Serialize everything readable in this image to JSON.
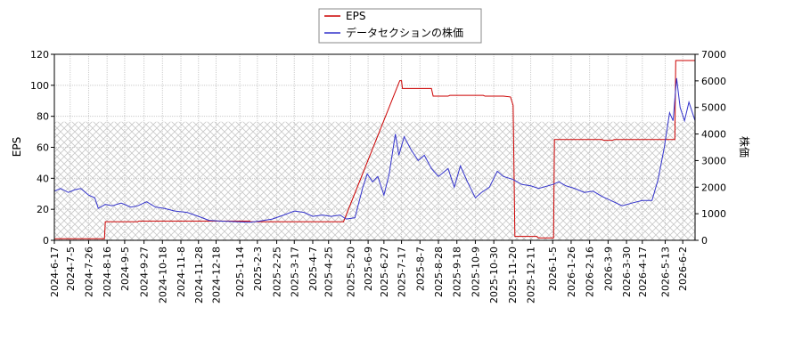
{
  "chart_data": {
    "type": "line",
    "legend": {
      "placement": "top-center",
      "entries": [
        {
          "name": "EPS",
          "color": "#cc0000"
        },
        {
          "name": "データセクションの株価",
          "color": "#3333cc"
        }
      ]
    },
    "ylabel_left": "EPS",
    "ylabel_right": "株価",
    "ylim_left": [
      0,
      120
    ],
    "ylim_right": [
      0,
      7000
    ],
    "yticks_left": [
      0,
      20,
      40,
      60,
      80,
      100,
      120
    ],
    "yticks_right": [
      0,
      1000,
      2000,
      3000,
      4000,
      5000,
      6000,
      7000
    ],
    "xlim": [
      "2024-06-17",
      "2026-06-16"
    ],
    "xticks": [
      "2024-6-17",
      "2024-7-5",
      "2024-7-26",
      "2024-8-16",
      "2024-9-5",
      "2024-9-27",
      "2024-10-18",
      "2024-11-8",
      "2024-11-28",
      "2024-12-18",
      "2025-1-14",
      "2025-2-3",
      "2025-2-25",
      "2025-3-17",
      "2025-4-7",
      "2025-4-25",
      "2025-5-20",
      "2025-6-9",
      "2025-6-27",
      "2025-7-17",
      "2025-8-7",
      "2025-8-28",
      "2025-9-18",
      "2025-10-9",
      "2025-10-30",
      "2025-11-20",
      "2025-12-11",
      "2026-1-5",
      "2026-1-26",
      "2026-2-16",
      "2026-3-9",
      "2026-3-30",
      "2026-4-17",
      "2026-5-13",
      "2026-6-2"
    ],
    "grid": true,
    "hatched_band_left": [
      0,
      76.5
    ],
    "series": [
      {
        "name": "EPS",
        "axis": "left",
        "color": "#cc0000",
        "points": [
          [
            "2024-06-17",
            1.0
          ],
          [
            "2024-08-13",
            1.0
          ],
          [
            "2024-08-14",
            12.0
          ],
          [
            "2024-09-20",
            12.0
          ],
          [
            "2024-09-21",
            12.4
          ],
          [
            "2025-01-25",
            12.4
          ],
          [
            "2025-01-26",
            12.0
          ],
          [
            "2025-05-12",
            12.0
          ],
          [
            "2025-07-15",
            103
          ],
          [
            "2025-07-17",
            103
          ],
          [
            "2025-07-18",
            98
          ],
          [
            "2025-08-20",
            98
          ],
          [
            "2025-08-22",
            93
          ],
          [
            "2025-09-08",
            93
          ],
          [
            "2025-09-10",
            93.5
          ],
          [
            "2025-10-18",
            93.5
          ],
          [
            "2025-10-20",
            93
          ],
          [
            "2025-11-10",
            93
          ],
          [
            "2025-11-18",
            92.5
          ],
          [
            "2025-11-21",
            87
          ],
          [
            "2025-11-23",
            2.5
          ],
          [
            "2025-12-18",
            2.5
          ],
          [
            "2025-12-20",
            1.5
          ],
          [
            "2026-01-06",
            1.5
          ],
          [
            "2026-01-07",
            65
          ],
          [
            "2026-03-02",
            65
          ],
          [
            "2026-03-04",
            64.5
          ],
          [
            "2026-03-14",
            64.5
          ],
          [
            "2026-03-16",
            65
          ],
          [
            "2026-05-24",
            65
          ],
          [
            "2026-05-25",
            116
          ],
          [
            "2026-06-16",
            116
          ]
        ]
      },
      {
        "name": "データセクションの株価",
        "axis": "right",
        "color": "#3333cc",
        "points": [
          [
            "2024-06-17",
            1850
          ],
          [
            "2024-06-24",
            1950
          ],
          [
            "2024-07-03",
            1800
          ],
          [
            "2024-07-10",
            1900
          ],
          [
            "2024-07-17",
            1950
          ],
          [
            "2024-07-26",
            1700
          ],
          [
            "2024-08-02",
            1600
          ],
          [
            "2024-08-06",
            1200
          ],
          [
            "2024-08-14",
            1350
          ],
          [
            "2024-08-22",
            1300
          ],
          [
            "2024-09-01",
            1400
          ],
          [
            "2024-09-12",
            1250
          ],
          [
            "2024-09-20",
            1300
          ],
          [
            "2024-09-30",
            1450
          ],
          [
            "2024-10-10",
            1250
          ],
          [
            "2024-10-20",
            1200
          ],
          [
            "2024-11-01",
            1100
          ],
          [
            "2024-11-15",
            1050
          ],
          [
            "2024-11-28",
            900
          ],
          [
            "2024-12-10",
            750
          ],
          [
            "2024-12-25",
            720
          ],
          [
            "2025-01-10",
            700
          ],
          [
            "2025-01-25",
            680
          ],
          [
            "2025-02-05",
            720
          ],
          [
            "2025-02-20",
            800
          ],
          [
            "2025-03-05",
            950
          ],
          [
            "2025-03-17",
            1100
          ],
          [
            "2025-03-28",
            1050
          ],
          [
            "2025-04-07",
            900
          ],
          [
            "2025-04-18",
            950
          ],
          [
            "2025-04-28",
            900
          ],
          [
            "2025-05-08",
            950
          ],
          [
            "2025-05-15",
            800
          ],
          [
            "2025-05-25",
            850
          ],
          [
            "2025-06-03",
            2000
          ],
          [
            "2025-06-08",
            2500
          ],
          [
            "2025-06-14",
            2200
          ],
          [
            "2025-06-20",
            2400
          ],
          [
            "2025-06-27",
            1700
          ],
          [
            "2025-07-03",
            2500
          ],
          [
            "2025-07-10",
            4000
          ],
          [
            "2025-07-14",
            3200
          ],
          [
            "2025-07-20",
            3900
          ],
          [
            "2025-07-28",
            3400
          ],
          [
            "2025-08-05",
            3000
          ],
          [
            "2025-08-12",
            3200
          ],
          [
            "2025-08-20",
            2700
          ],
          [
            "2025-08-28",
            2400
          ],
          [
            "2025-09-08",
            2700
          ],
          [
            "2025-09-15",
            2000
          ],
          [
            "2025-09-22",
            2800
          ],
          [
            "2025-09-30",
            2200
          ],
          [
            "2025-10-09",
            1600
          ],
          [
            "2025-10-16",
            1800
          ],
          [
            "2025-10-25",
            2000
          ],
          [
            "2025-11-03",
            2600
          ],
          [
            "2025-11-10",
            2400
          ],
          [
            "2025-11-20",
            2300
          ],
          [
            "2025-12-01",
            2100
          ],
          [
            "2025-12-11",
            2050
          ],
          [
            "2025-12-20",
            1950
          ],
          [
            "2026-01-05",
            2100
          ],
          [
            "2026-01-12",
            2200
          ],
          [
            "2026-01-20",
            2050
          ],
          [
            "2026-01-30",
            1950
          ],
          [
            "2026-02-10",
            1800
          ],
          [
            "2026-02-20",
            1850
          ],
          [
            "2026-03-02",
            1650
          ],
          [
            "2026-03-12",
            1500
          ],
          [
            "2026-03-25",
            1300
          ],
          [
            "2026-04-05",
            1400
          ],
          [
            "2026-04-17",
            1500
          ],
          [
            "2026-04-28",
            1500
          ],
          [
            "2026-05-05",
            2300
          ],
          [
            "2026-05-12",
            3500
          ],
          [
            "2026-05-18",
            4800
          ],
          [
            "2026-05-22",
            4500
          ],
          [
            "2026-05-26",
            6100
          ],
          [
            "2026-05-30",
            5000
          ],
          [
            "2026-06-04",
            4500
          ],
          [
            "2026-06-09",
            5200
          ],
          [
            "2026-06-16",
            4500
          ]
        ]
      }
    ]
  }
}
